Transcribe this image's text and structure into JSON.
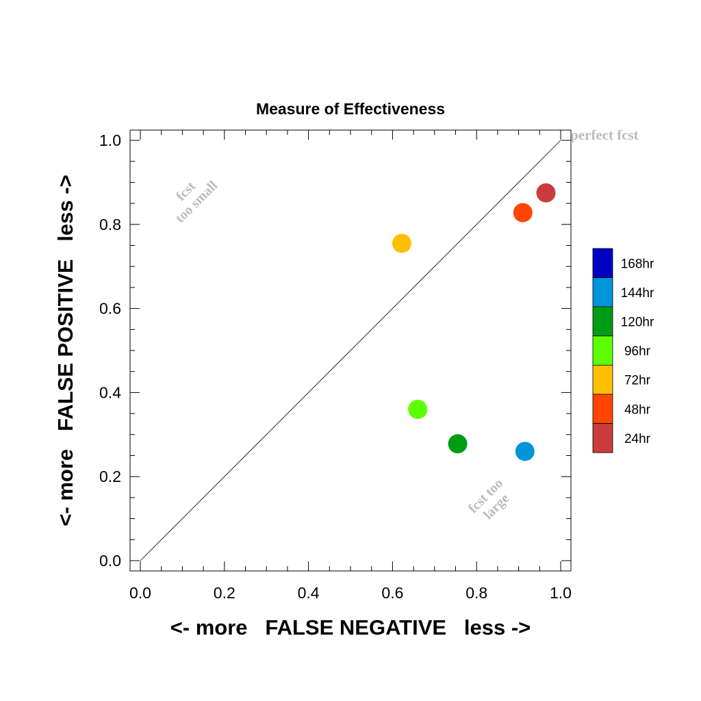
{
  "chart_data": {
    "type": "scatter",
    "title": "Measure of Effectiveness",
    "xlabel": "<- more   FALSE NEGATIVE   less ->",
    "ylabel": "<- more   FALSE POSITIVE   less ->",
    "xlim": [
      0.0,
      1.0
    ],
    "ylim": [
      0.0,
      1.0
    ],
    "xticks": [
      "0.0",
      "0.2",
      "0.4",
      "0.6",
      "0.8",
      "1.0"
    ],
    "yticks": [
      "0.0",
      "0.2",
      "0.4",
      "0.6",
      "0.8",
      "1.0"
    ],
    "grid": false,
    "reference_line": "diagonal y = x",
    "annotations": {
      "perfect": "perfect fcst",
      "too_small": [
        "fcst",
        "too small"
      ],
      "too_large": [
        "fcst too",
        "large"
      ]
    },
    "legend_position": "right",
    "series": [
      {
        "name": "24hr",
        "color": "#cc3b3b",
        "x": 0.965,
        "y": 0.875
      },
      {
        "name": "48hr",
        "color": "#ff4500",
        "x": 0.91,
        "y": 0.828
      },
      {
        "name": "72hr",
        "color": "#ffbf00",
        "x": 0.622,
        "y": 0.755
      },
      {
        "name": "96hr",
        "color": "#5cff00",
        "x": 0.66,
        "y": 0.36
      },
      {
        "name": "120hr",
        "color": "#009c14",
        "x": 0.755,
        "y": 0.278
      },
      {
        "name": "144hr",
        "color": "#0095db",
        "x": 0.915,
        "y": 0.26
      },
      {
        "name": "168hr",
        "color": "#0000c2",
        "x": null,
        "y": null
      }
    ]
  }
}
